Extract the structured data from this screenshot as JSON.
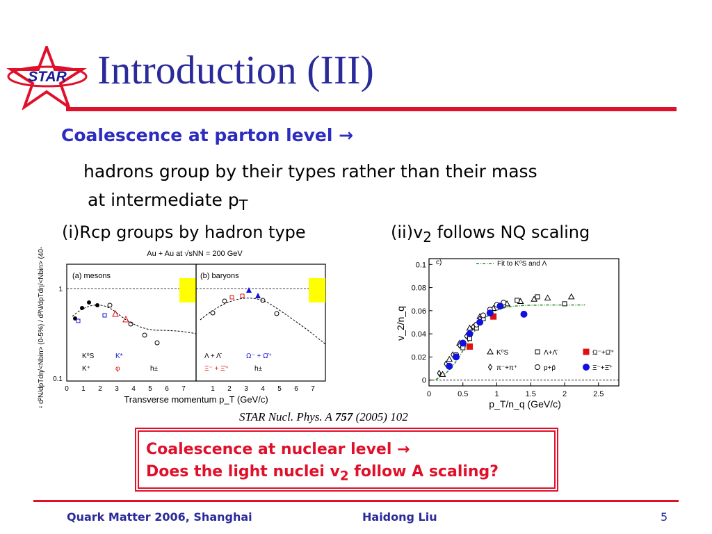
{
  "logo": {
    "text": "STAR"
  },
  "title": "Introduction (III)",
  "heading": {
    "text": "Coalescence at parton level",
    "arrow": "→"
  },
  "body": {
    "line1": "hadrons group by their types rather than their mass",
    "line2_prefix": "at intermediate p",
    "line2_sub": "T"
  },
  "labels": {
    "left": "(i)Rcp groups by hadron type",
    "right_prefix": "(ii)v",
    "right_sub": "2",
    "right_suffix": " follows NQ scaling"
  },
  "left_figure": {
    "top_title": "Au + Au at √sNN = 200 GeV",
    "panel_a": "(a) mesons",
    "panel_b": "(b) baryons",
    "ylabel": "R_CP = d²N/dpTdη/<Nbin> (0-5%) / d²N/dpTdη/<Nbin> (40-60%)",
    "xlabel": "Transverse momentum p_T (GeV/c)",
    "y_ticks": [
      "1",
      "0.1"
    ],
    "x_ticks": [
      "0",
      "1",
      "2",
      "3",
      "4",
      "5",
      "6",
      "7"
    ],
    "legend_a": [
      "K⁰S",
      "K*",
      "K⁺",
      "φ",
      "h±"
    ],
    "legend_b": [
      "Λ + Λ̄",
      "Ω⁻ + Ω̄⁺",
      "Ξ⁻ + Ξ̄⁺",
      "h±"
    ]
  },
  "chart_data": {
    "type": "scatter",
    "panel": "c)",
    "xlabel": "p_T/n_q (GeV/c)",
    "ylabel": "v_2/n_q",
    "xlim": [
      0,
      2.8
    ],
    "ylim": [
      -0.005,
      0.105
    ],
    "x_ticks": [
      0,
      0.5,
      1,
      1.5,
      2,
      2.5
    ],
    "y_ticks": [
      0,
      0.02,
      0.04,
      0.06,
      0.08,
      0.1
    ],
    "fit": {
      "name": "Fit to K⁰S and Λ",
      "plateau": 0.069
    },
    "series": [
      {
        "name": "K⁰S",
        "marker": "triangle-open",
        "color": "#000000",
        "x": [
          0.2,
          0.3,
          0.45,
          0.6,
          0.75,
          0.95,
          1.15,
          1.35,
          1.55,
          1.75,
          2.1
        ],
        "y": [
          0.005,
          0.018,
          0.032,
          0.045,
          0.055,
          0.062,
          0.066,
          0.068,
          0.07,
          0.071,
          0.072
        ]
      },
      {
        "name": "Λ+Λ̄",
        "marker": "square-open",
        "color": "#000000",
        "x": [
          0.5,
          0.6,
          0.7,
          0.8,
          0.9,
          1.1,
          1.3,
          1.6,
          2.0
        ],
        "y": [
          0.028,
          0.036,
          0.045,
          0.053,
          0.059,
          0.065,
          0.069,
          0.072,
          0.066
        ]
      },
      {
        "name": "Ω⁻+Ω̄⁺",
        "marker": "square-filled",
        "color": "#e01010",
        "x": [
          0.6,
          0.95
        ],
        "y": [
          0.029,
          0.055
        ]
      },
      {
        "name": "π⁻+π⁺",
        "marker": "diamond-open",
        "color": "#000000",
        "x": [
          0.15,
          0.25,
          0.35,
          0.45,
          0.55,
          0.65,
          0.75
        ],
        "y": [
          0.006,
          0.014,
          0.022,
          0.03,
          0.038,
          0.046,
          0.053
        ]
      },
      {
        "name": "p+p̄",
        "marker": "circle-open",
        "color": "#000000",
        "x": [
          0.4,
          0.5,
          0.6,
          0.7,
          0.8,
          0.9,
          1.0,
          1.1
        ],
        "y": [
          0.022,
          0.032,
          0.04,
          0.048,
          0.056,
          0.061,
          0.065,
          0.067
        ]
      },
      {
        "name": "Ξ⁻+Ξ̄⁺",
        "marker": "circle-filled",
        "color": "#1010e0",
        "x": [
          0.3,
          0.4,
          0.5,
          0.6,
          0.75,
          0.9,
          1.05,
          1.4
        ],
        "y": [
          0.012,
          0.02,
          0.032,
          0.04,
          0.05,
          0.058,
          0.064,
          0.057
        ]
      }
    ]
  },
  "citation": {
    "prefix": "STAR Nucl. Phys. A ",
    "volume": "757",
    "suffix": " (2005) 102"
  },
  "box": {
    "line1": "Coalescence at nuclear level",
    "arrow": "→",
    "line2_prefix": "Does the light nuclei v",
    "line2_sub": "2",
    "line2_suffix": " follow A scaling?"
  },
  "footer": {
    "left": "Quark Matter 2006, Shanghai",
    "center": "Haidong Liu",
    "page": "5"
  },
  "colors": {
    "title": "#2a2a9a",
    "heading": "#2c2cc0",
    "accent": "#e0102a"
  }
}
